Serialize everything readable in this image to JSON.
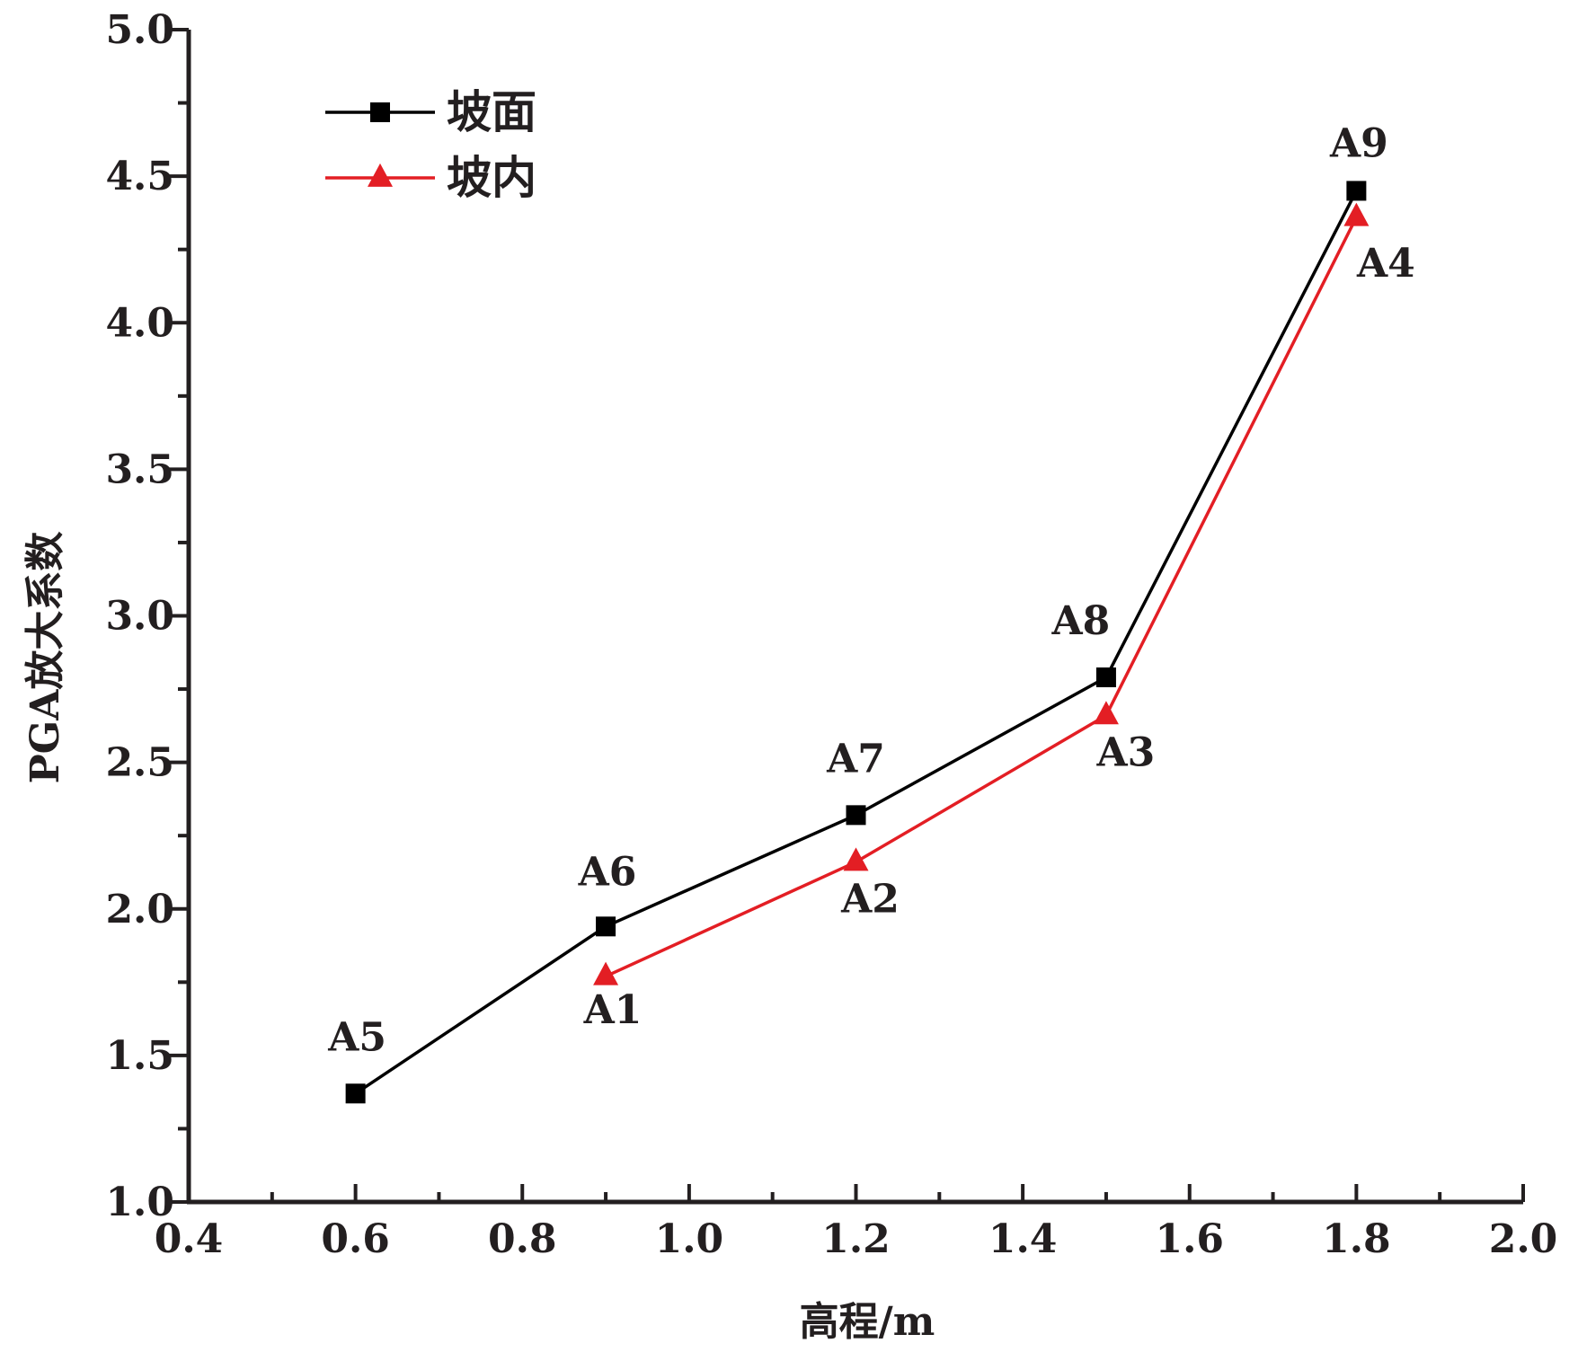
{
  "chart_data": {
    "type": "line",
    "xlabel": "高程/m",
    "ylabel": "PGA放大系数",
    "xlim": [
      0.4,
      2.0
    ],
    "ylim": [
      1.0,
      5.0
    ],
    "xticks": [
      "0.4",
      "0.6",
      "0.8",
      "1.0",
      "1.2",
      "1.4",
      "1.6",
      "1.8",
      "2.0"
    ],
    "yticks": [
      "1.0",
      "1.5",
      "2.0",
      "2.5",
      "3.0",
      "3.5",
      "4.0",
      "4.5",
      "5.0"
    ],
    "grid": false,
    "legend_position": "top-left",
    "series": [
      {
        "name": "坡面",
        "color": "#000000",
        "marker": "square",
        "points": [
          {
            "x": 0.6,
            "y": 1.37,
            "label": "A5"
          },
          {
            "x": 0.9,
            "y": 1.94,
            "label": "A6"
          },
          {
            "x": 1.2,
            "y": 2.32,
            "label": "A7"
          },
          {
            "x": 1.5,
            "y": 2.79,
            "label": "A8"
          },
          {
            "x": 1.8,
            "y": 4.45,
            "label": "A9"
          }
        ]
      },
      {
        "name": "坡内",
        "color": "#e31e24",
        "marker": "triangle",
        "points": [
          {
            "x": 0.9,
            "y": 1.77,
            "label": "A1"
          },
          {
            "x": 1.2,
            "y": 2.16,
            "label": "A2"
          },
          {
            "x": 1.5,
            "y": 2.66,
            "label": "A3"
          },
          {
            "x": 1.8,
            "y": 4.36,
            "label": "A4"
          }
        ]
      }
    ]
  }
}
